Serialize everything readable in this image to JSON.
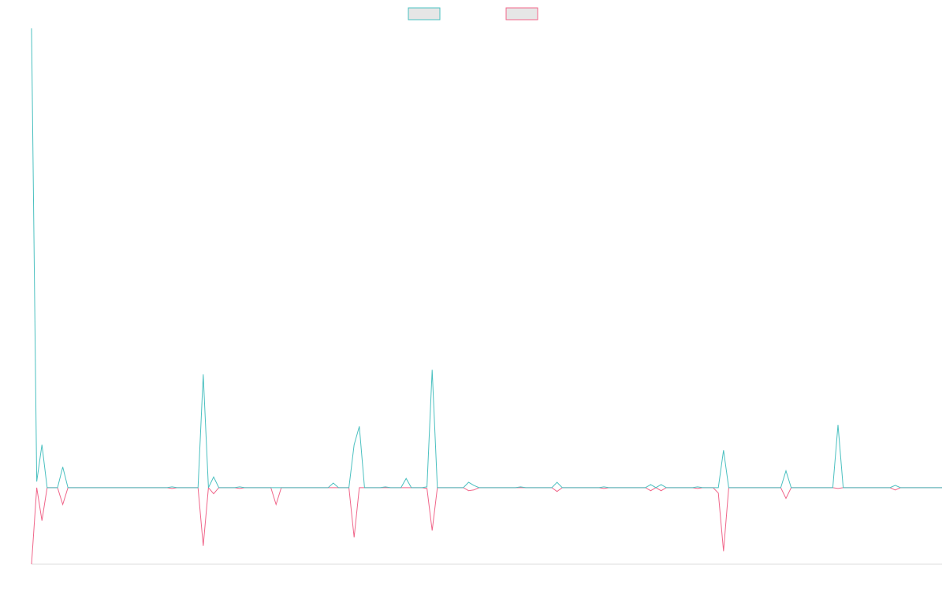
{
  "chart_data": {
    "type": "line",
    "categories": [
      null,
      null,
      null,
      null,
      null,
      null,
      null,
      null,
      null,
      null,
      null,
      null,
      null,
      null,
      null,
      null,
      null,
      null,
      null,
      null,
      null,
      null,
      null,
      null,
      null,
      null,
      null,
      null,
      null,
      null,
      null,
      null,
      null,
      null,
      null,
      null,
      null,
      null,
      null,
      null,
      null,
      null,
      null,
      null,
      null,
      null,
      null,
      null,
      null,
      null,
      null,
      null,
      null,
      null,
      null,
      null,
      null,
      null,
      null,
      null,
      null,
      null,
      null,
      null,
      null,
      null,
      null,
      null,
      null,
      null,
      null,
      null,
      null,
      null,
      null,
      null,
      null,
      null,
      null,
      null,
      null,
      null,
      null,
      null,
      null,
      null,
      null,
      null,
      null,
      null,
      null,
      null,
      null,
      null,
      null,
      null,
      null,
      null,
      null,
      null,
      null,
      null,
      null,
      null,
      null,
      null,
      null,
      null,
      null,
      null,
      null,
      null,
      null,
      null,
      null,
      null,
      null,
      null,
      null,
      null,
      null,
      null,
      null,
      null,
      null,
      null,
      null,
      null,
      null,
      null,
      null,
      null,
      null,
      null,
      null,
      null,
      null,
      null,
      null,
      null,
      null,
      null,
      null,
      null,
      null,
      null,
      null,
      null,
      null,
      null,
      null,
      null,
      null,
      null,
      null,
      null,
      null,
      null,
      null,
      null,
      null,
      null,
      null,
      null,
      null,
      null,
      null,
      null,
      null,
      null,
      null,
      null,
      null,
      null,
      null,
      null
    ],
    "series": [
      {
        "color": "#4bc0c0",
        "values": [
          600,
          8,
          56,
          0,
          0,
          0,
          27,
          0,
          0,
          0,
          0,
          0,
          0,
          0,
          0,
          0,
          0,
          0,
          0,
          0,
          0,
          0,
          0,
          0,
          0,
          0,
          0,
          1,
          0,
          0,
          0,
          0,
          0,
          148,
          0,
          14,
          0,
          0,
          0,
          0,
          1,
          0,
          0,
          0,
          0,
          0,
          0,
          0,
          0,
          0,
          0,
          0,
          0,
          0,
          0,
          0,
          0,
          0,
          6,
          0,
          0,
          0,
          56,
          80,
          0,
          0,
          0,
          0,
          1,
          0,
          0,
          0,
          12,
          0,
          0,
          0,
          1,
          154,
          0,
          0,
          0,
          0,
          0,
          0,
          7,
          3,
          0,
          0,
          0,
          0,
          0,
          0,
          0,
          0,
          1,
          0,
          0,
          0,
          0,
          0,
          0,
          7,
          0,
          0,
          0,
          0,
          0,
          0,
          0,
          0,
          1,
          0,
          0,
          0,
          0,
          0,
          0,
          0,
          0,
          4,
          0,
          4,
          0,
          0,
          0,
          0,
          0,
          0,
          1,
          0,
          0,
          0,
          0,
          49,
          0,
          0,
          0,
          0,
          0,
          0,
          0,
          0,
          0,
          0,
          0,
          22,
          0,
          0,
          0,
          0,
          0,
          0,
          0,
          0,
          0,
          82,
          0,
          0,
          0,
          0,
          0,
          0,
          0,
          0,
          0,
          0,
          3,
          0,
          0,
          0,
          0,
          0,
          0,
          0,
          0,
          0
        ]
      },
      {
        "color": "#f0668a",
        "values": [
          -100,
          0,
          -43,
          0,
          0,
          0,
          -22,
          0,
          0,
          0,
          0,
          0,
          0,
          0,
          0,
          0,
          0,
          0,
          0,
          0,
          0,
          0,
          0,
          0,
          0,
          0,
          0,
          -1,
          0,
          0,
          0,
          0,
          0,
          -76,
          0,
          -8,
          0,
          0,
          0,
          0,
          -1,
          0,
          0,
          0,
          0,
          0,
          0,
          -22,
          0,
          0,
          0,
          0,
          0,
          0,
          0,
          0,
          0,
          0,
          0,
          0,
          0,
          0,
          -65,
          0,
          0,
          0,
          0,
          0,
          0,
          0,
          0,
          0,
          0,
          0,
          0,
          0,
          -1,
          -56,
          0,
          0,
          0,
          0,
          0,
          0,
          -4,
          -3,
          0,
          0,
          0,
          0,
          0,
          0,
          0,
          0,
          0,
          0,
          0,
          0,
          0,
          0,
          0,
          -5,
          0,
          0,
          0,
          0,
          0,
          0,
          0,
          0,
          -1,
          0,
          0,
          0,
          0,
          0,
          0,
          0,
          0,
          -4,
          0,
          -4,
          0,
          0,
          0,
          0,
          0,
          0,
          -1,
          0,
          0,
          0,
          -7,
          -83,
          0,
          0,
          0,
          0,
          0,
          0,
          0,
          0,
          0,
          0,
          0,
          -14,
          0,
          0,
          0,
          0,
          0,
          0,
          0,
          0,
          0,
          -1,
          0,
          0,
          0,
          0,
          0,
          0,
          0,
          0,
          0,
          0,
          -3,
          0,
          0,
          0,
          0,
          0,
          0,
          0,
          0,
          0
        ]
      }
    ],
    "ylim": [
      -100,
      600
    ],
    "grid": false,
    "legend": "top"
  }
}
